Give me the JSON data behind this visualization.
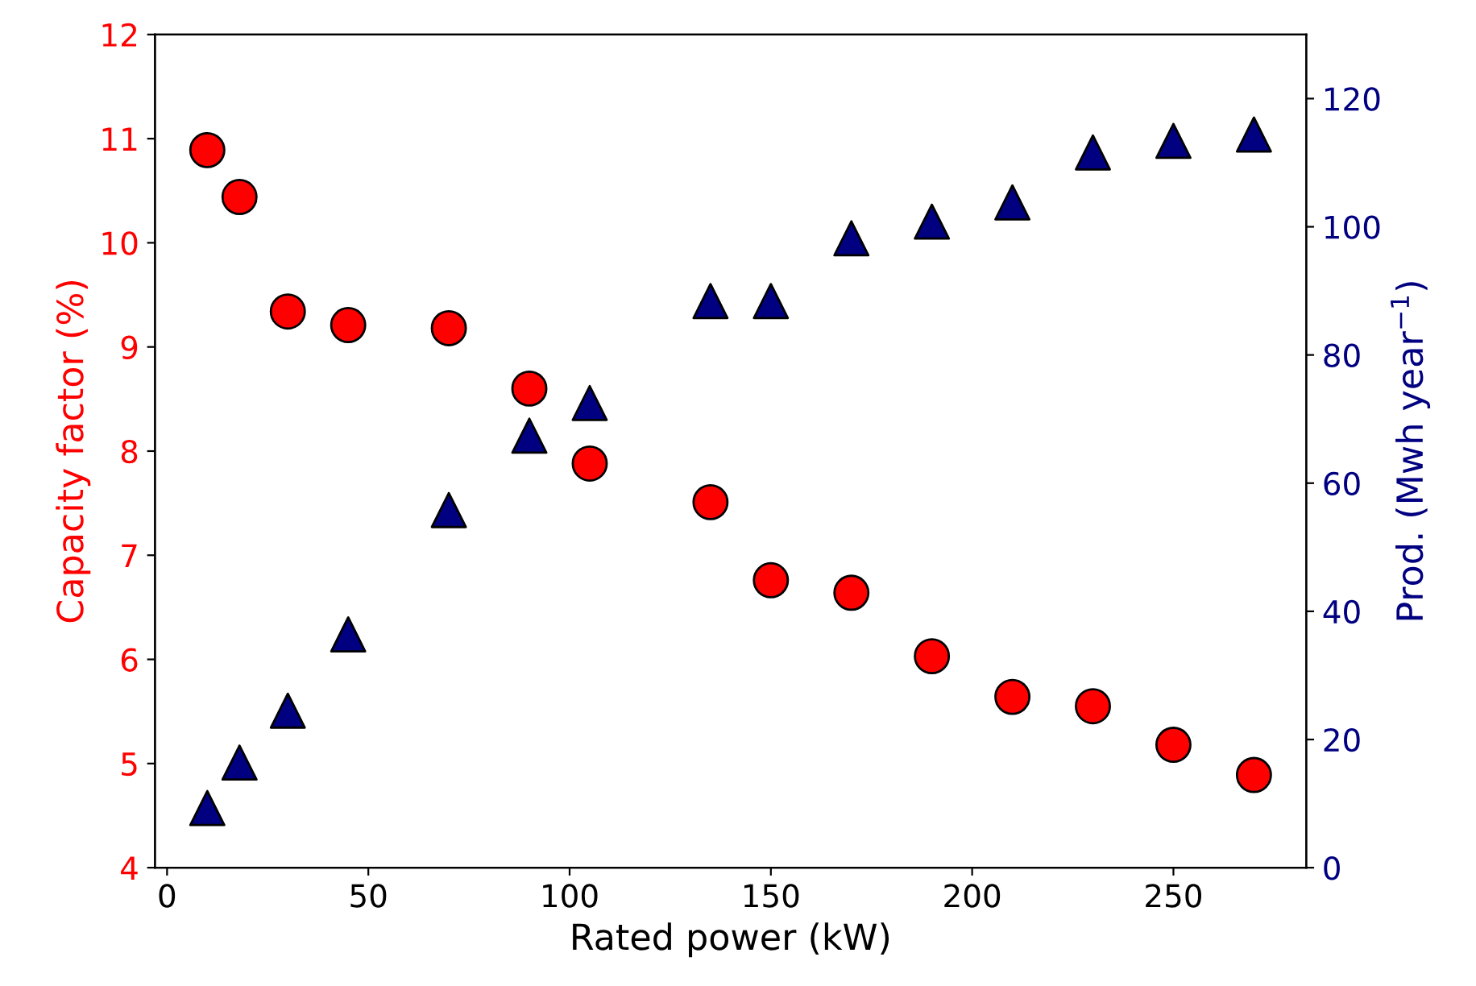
{
  "chart_data": {
    "type": "scatter",
    "xlabel": "Rated power (kW)",
    "ylabel": "Capacity factor (%)",
    "y2label": "Prod. (Mwh year$^{−1}$)",
    "x": [
      10,
      18,
      30,
      45,
      70,
      90,
      105,
      135,
      150,
      170,
      190,
      210,
      230,
      250,
      270
    ],
    "series": [
      {
        "color": "#ff0000",
        "marker": "circle",
        "values": [
          10.89,
          10.44,
          9.34,
          9.21,
          9.18,
          8.6,
          7.88,
          7.51,
          6.76,
          6.64,
          6.03,
          5.64,
          5.55,
          5.18,
          4.89
        ]
      },
      {
        "color": "#000080",
        "marker": "triangle",
        "axis": "y2",
        "values": [
          9.3,
          16.4,
          24.5,
          36.4,
          55.8,
          67.4,
          72.5,
          88.4,
          88.4,
          98.2,
          100.8,
          103.8,
          111.6,
          113.4,
          114.4
        ]
      }
    ],
    "xlim": [
      -3,
      283
    ],
    "xticks": [
      0,
      50,
      100,
      150,
      200,
      250
    ],
    "ylim": [
      4,
      12
    ],
    "yticks": [
      4,
      5,
      6,
      7,
      8,
      9,
      10,
      11,
      12
    ],
    "y2lim": [
      0,
      130
    ],
    "y2ticks": [
      0,
      20,
      40,
      60,
      80,
      100,
      120
    ],
    "grid": false
  }
}
